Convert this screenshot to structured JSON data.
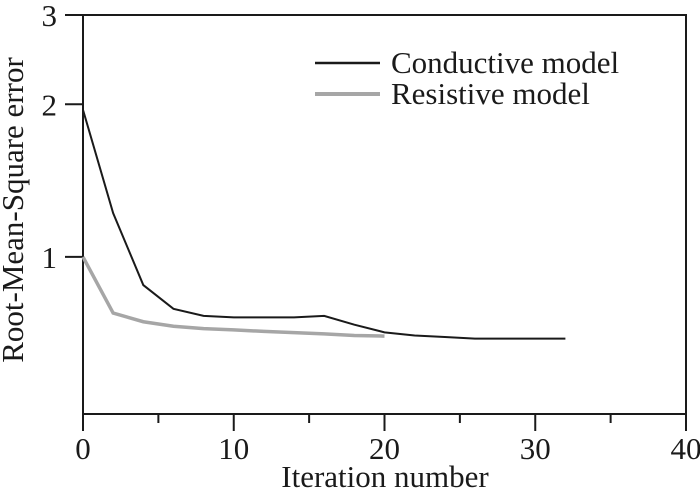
{
  "figure": {
    "background_color": "#ffffff"
  },
  "chart_data": {
    "type": "line",
    "title": "",
    "xlabel": "Iteration number",
    "ylabel": "Root-Mean-Square error",
    "xscale": "linear",
    "yscale": "log",
    "xlim": [
      0,
      40
    ],
    "ylim": [
      0.49,
      3.0
    ],
    "grid": false,
    "axis_color": "#1a1a1a",
    "x_major_ticks": [
      0,
      10,
      20,
      30,
      40
    ],
    "x_minor_ticks": [
      5,
      15,
      25,
      35
    ],
    "y_major_ticks": [
      3,
      2,
      1
    ],
    "legend": {
      "position": "top-right",
      "entries": [
        "Conductive model",
        "Resistive model"
      ]
    },
    "series": [
      {
        "name": "Conductive model",
        "color": "#1a1a1a",
        "stroke_width": 2,
        "x": [
          0,
          2,
          4,
          6,
          8,
          10,
          12,
          14,
          16,
          18,
          20,
          22,
          24,
          26,
          28,
          30,
          32
        ],
        "y": [
          1.95,
          1.22,
          0.88,
          0.79,
          0.765,
          0.76,
          0.76,
          0.76,
          0.765,
          0.735,
          0.71,
          0.7,
          0.695,
          0.69,
          0.69,
          0.69,
          0.69
        ]
      },
      {
        "name": "Resistive model",
        "color": "#a6a6a6",
        "stroke_width": 3.5,
        "x": [
          0,
          2,
          4,
          6,
          8,
          10,
          12,
          14,
          16,
          18,
          20
        ],
        "y": [
          1.0,
          0.775,
          0.745,
          0.73,
          0.722,
          0.718,
          0.713,
          0.709,
          0.705,
          0.7,
          0.698
        ]
      }
    ]
  }
}
